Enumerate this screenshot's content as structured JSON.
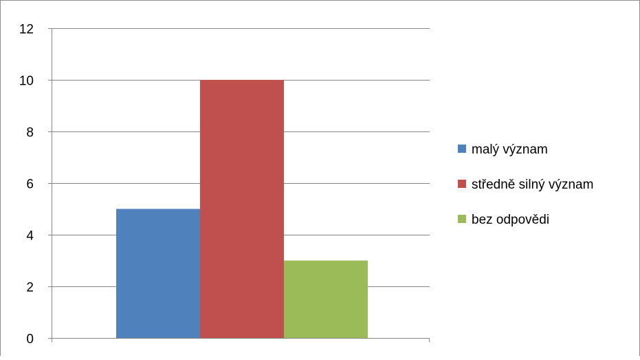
{
  "chart_data": {
    "type": "bar",
    "categories": [
      ""
    ],
    "series": [
      {
        "name": "malý význam",
        "values": [
          5
        ],
        "color": "#4f81bd"
      },
      {
        "name": "středně silný význam",
        "values": [
          10
        ],
        "color": "#c0504d"
      },
      {
        "name": "bez odpovědi",
        "values": [
          3
        ],
        "color": "#9bbb59"
      }
    ],
    "yticks": [
      "0",
      "2",
      "4",
      "6",
      "8",
      "10",
      "12"
    ],
    "ylim": [
      0,
      12
    ],
    "title": "",
    "xlabel": "",
    "ylabel": "",
    "grid": true,
    "legend_position": "right"
  }
}
